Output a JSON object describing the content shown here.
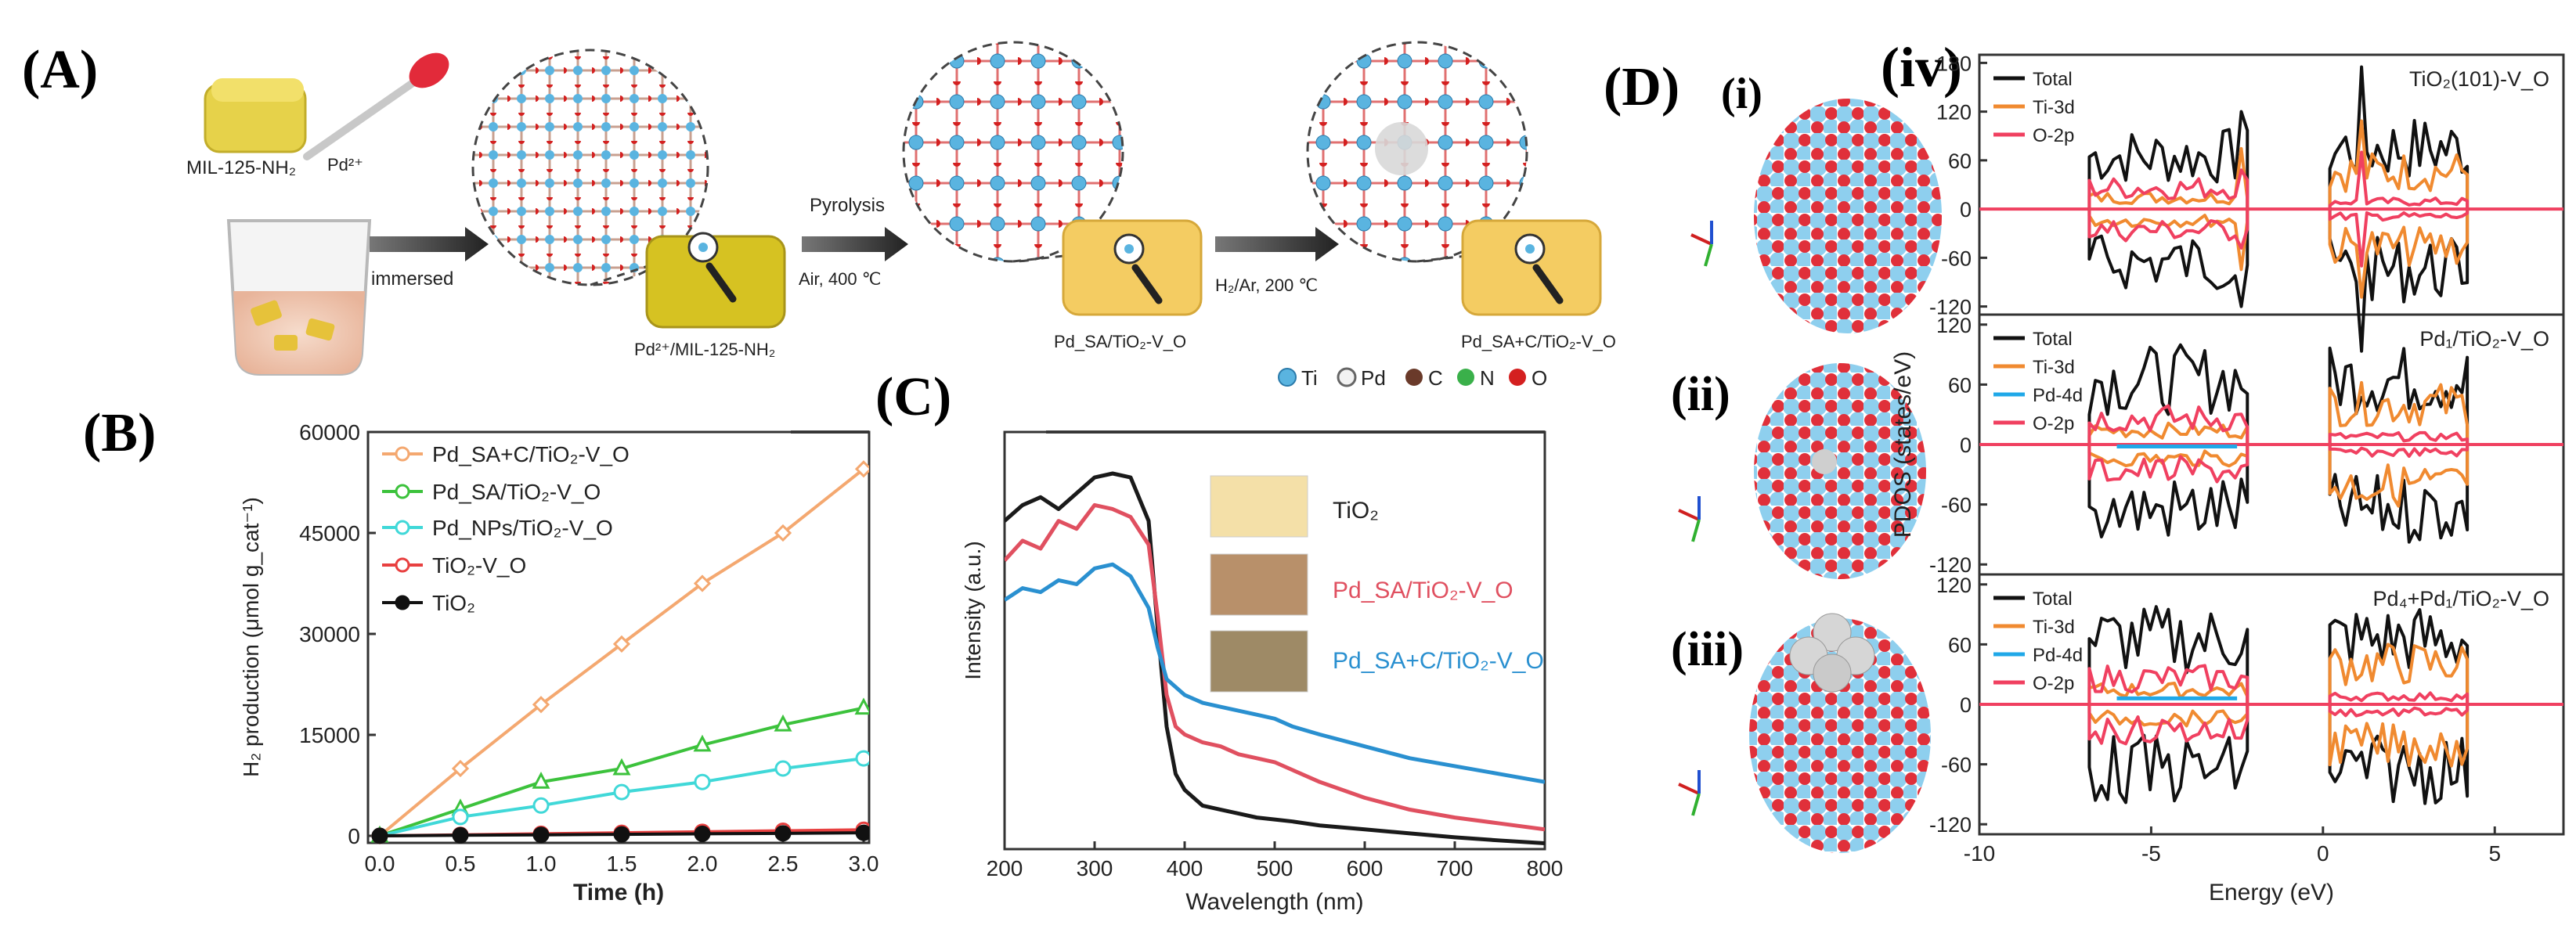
{
  "panels": {
    "A": {
      "label": "(A)",
      "mof": "MIL-125-NH₂",
      "pd_ion": "Pd²⁺",
      "step1": "immersed",
      "product1": "Pd²⁺/MIL-125-NH₂",
      "step2_top": "Pyrolysis",
      "step2_bottom": "Air, 400 ℃",
      "product2": "Pd_SA/TiO₂-V_O",
      "step3": "H₂/Ar, 200 ℃",
      "product3": "Pd_SA+C/TiO₂-V_O",
      "legend": [
        {
          "sym": "Ti",
          "color": "#5ab4e0"
        },
        {
          "sym": "Pd",
          "color": "#e8e8e8"
        },
        {
          "sym": "C",
          "color": "#6a3a2a"
        },
        {
          "sym": "N",
          "color": "#3ab04a"
        },
        {
          "sym": "O",
          "color": "#d42020"
        }
      ]
    },
    "B": {
      "label": "(B)"
    },
    "C": {
      "label": "(C)"
    },
    "D": {
      "label": "(D)",
      "sub": [
        "(i)",
        "(ii)",
        "(iii)",
        "(iv)"
      ]
    }
  },
  "chart_data": [
    {
      "id": "B",
      "type": "line",
      "xlabel": "Time (h)",
      "ylabel": "H₂ production (μmol g_cat⁻¹)",
      "xlim": [
        0,
        3
      ],
      "ylim": [
        0,
        60000
      ],
      "xticks": [
        "0.0",
        "0.5",
        "1.0",
        "1.5",
        "2.0",
        "2.5",
        "3.0"
      ],
      "yticks": [
        "0",
        "15000",
        "30000",
        "45000",
        "60000"
      ],
      "x": [
        0,
        0.5,
        1,
        1.5,
        2,
        2.5,
        3
      ],
      "series": [
        {
          "name": "Pd_SA+C/TiO₂-V_O",
          "color": "#f4a870",
          "marker": "diamond",
          "values": [
            0,
            10000,
            19500,
            28500,
            37500,
            45000,
            54500
          ]
        },
        {
          "name": "Pd_SA/TiO₂-V_O",
          "color": "#3cc23c",
          "marker": "triangle",
          "values": [
            0,
            4000,
            8000,
            10000,
            13500,
            16500,
            19000
          ]
        },
        {
          "name": "Pd_NPs/TiO₂-V_O",
          "color": "#40d8d8",
          "marker": "circle",
          "values": [
            0,
            2800,
            4500,
            6500,
            8000,
            10000,
            11500
          ]
        },
        {
          "name": "TiO₂-V_O",
          "color": "#e84040",
          "marker": "circle",
          "values": [
            0,
            150,
            300,
            450,
            600,
            750,
            900
          ]
        },
        {
          "name": "TiO₂",
          "color": "#111111",
          "marker": "filled",
          "values": [
            0,
            80,
            150,
            220,
            300,
            370,
            450
          ]
        }
      ]
    },
    {
      "id": "C",
      "type": "line",
      "xlabel": "Wavelength (nm)",
      "ylabel": "Intensity (a.u.)",
      "xlim": [
        200,
        800
      ],
      "ylim": [
        0,
        1
      ],
      "xticks": [
        "200",
        "300",
        "400",
        "500",
        "600",
        "700",
        "800"
      ],
      "x": [
        200,
        220,
        240,
        260,
        280,
        300,
        320,
        340,
        360,
        370,
        380,
        390,
        400,
        420,
        440,
        460,
        480,
        500,
        520,
        550,
        600,
        650,
        700,
        750,
        800
      ],
      "series": [
        {
          "name": "TiO₂",
          "color": "#1a1a1a",
          "values": [
            0.82,
            0.86,
            0.88,
            0.85,
            0.89,
            0.93,
            0.94,
            0.93,
            0.82,
            0.55,
            0.3,
            0.18,
            0.14,
            0.1,
            0.09,
            0.08,
            0.07,
            0.065,
            0.06,
            0.05,
            0.04,
            0.03,
            0.02,
            0.012,
            0.005
          ]
        },
        {
          "name": "Pd_SA/TiO₂-V_O",
          "color": "#e05060",
          "values": [
            0.72,
            0.77,
            0.75,
            0.82,
            0.8,
            0.86,
            0.85,
            0.83,
            0.76,
            0.58,
            0.38,
            0.3,
            0.28,
            0.26,
            0.25,
            0.23,
            0.22,
            0.21,
            0.19,
            0.16,
            0.12,
            0.09,
            0.07,
            0.055,
            0.04
          ]
        },
        {
          "name": "Pd_SA+C/TiO₂-V_O",
          "color": "#2a90d0",
          "values": [
            0.62,
            0.65,
            0.64,
            0.67,
            0.66,
            0.7,
            0.71,
            0.68,
            0.6,
            0.5,
            0.42,
            0.4,
            0.38,
            0.36,
            0.35,
            0.34,
            0.33,
            0.32,
            0.3,
            0.28,
            0.25,
            0.22,
            0.2,
            0.18,
            0.16
          ]
        }
      ]
    },
    {
      "id": "D-iv",
      "type": "line",
      "ylabel": "PDOS (states/eV)",
      "xlabel": "Energy (eV)",
      "xlim": [
        -10,
        7
      ],
      "xticks": [
        "-10",
        "-5",
        "0",
        "5"
      ],
      "subplots": [
        {
          "title": "TiO₂(101)-V_O",
          "ylim": [
            -130,
            190
          ],
          "yticks": [
            "180",
            "120",
            "60",
            "0",
            "-60",
            "-120"
          ],
          "legend": [
            "Total",
            "Ti-3d",
            "O-2p"
          ]
        },
        {
          "title": "Pd₁/TiO₂-V_O",
          "ylim": [
            -130,
            130
          ],
          "yticks": [
            "120",
            "60",
            "0",
            "-60",
            "-120"
          ],
          "legend": [
            "Total",
            "Ti-3d",
            "Pd-4d",
            "O-2p"
          ]
        },
        {
          "title": "Pd₄+Pd₁/TiO₂-V_O",
          "ylim": [
            -130,
            130
          ],
          "yticks": [
            "120",
            "60",
            "0",
            "-60",
            "-120"
          ],
          "legend": [
            "Total",
            "Ti-3d",
            "Pd-4d",
            "O-2p"
          ]
        }
      ],
      "legend_colors": {
        "Total": "#111111",
        "Ti-3d": "#f08a30",
        "Pd-4d": "#20a8e8",
        "O-2p": "#f04060"
      }
    }
  ]
}
